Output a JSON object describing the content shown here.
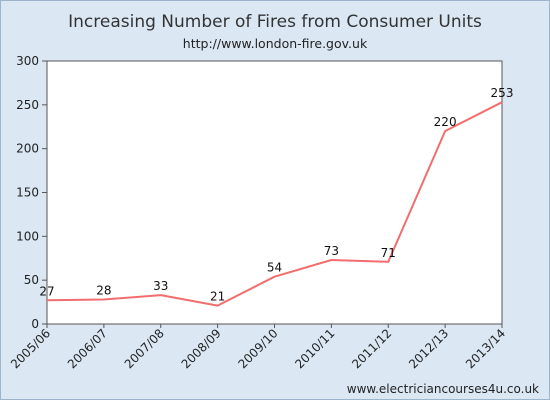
{
  "chart_data": {
    "type": "line",
    "title": "Increasing Number of Fires from Consumer Units",
    "subtitle": "http://www.london-fire.gov.uk",
    "categories": [
      "2005/06",
      "2006/07",
      "2007/08",
      "2008/09",
      "2009/10",
      "2010/11",
      "2011/12",
      "2012/13",
      "2013/14"
    ],
    "series": [
      {
        "values": [
          27,
          28,
          33,
          21,
          54,
          73,
          71,
          220,
          253
        ],
        "color": "#f26d6d"
      }
    ],
    "data_labels": [
      "27",
      "28",
      "33",
      "21",
      "54",
      "73",
      "71",
      "220",
      "253"
    ],
    "yticks": [
      "0",
      "50",
      "100",
      "150",
      "200",
      "250",
      "300"
    ],
    "ylim": [
      0,
      300
    ],
    "xlabel": "",
    "ylabel": "",
    "grid": false,
    "legend": "none"
  },
  "footer": "www.electriciancourses4u.co.uk",
  "colors": {
    "background": "#dbe8f4",
    "plot_area": "#ffffff",
    "line": "#f26d6d",
    "border": "#9db5cc"
  }
}
